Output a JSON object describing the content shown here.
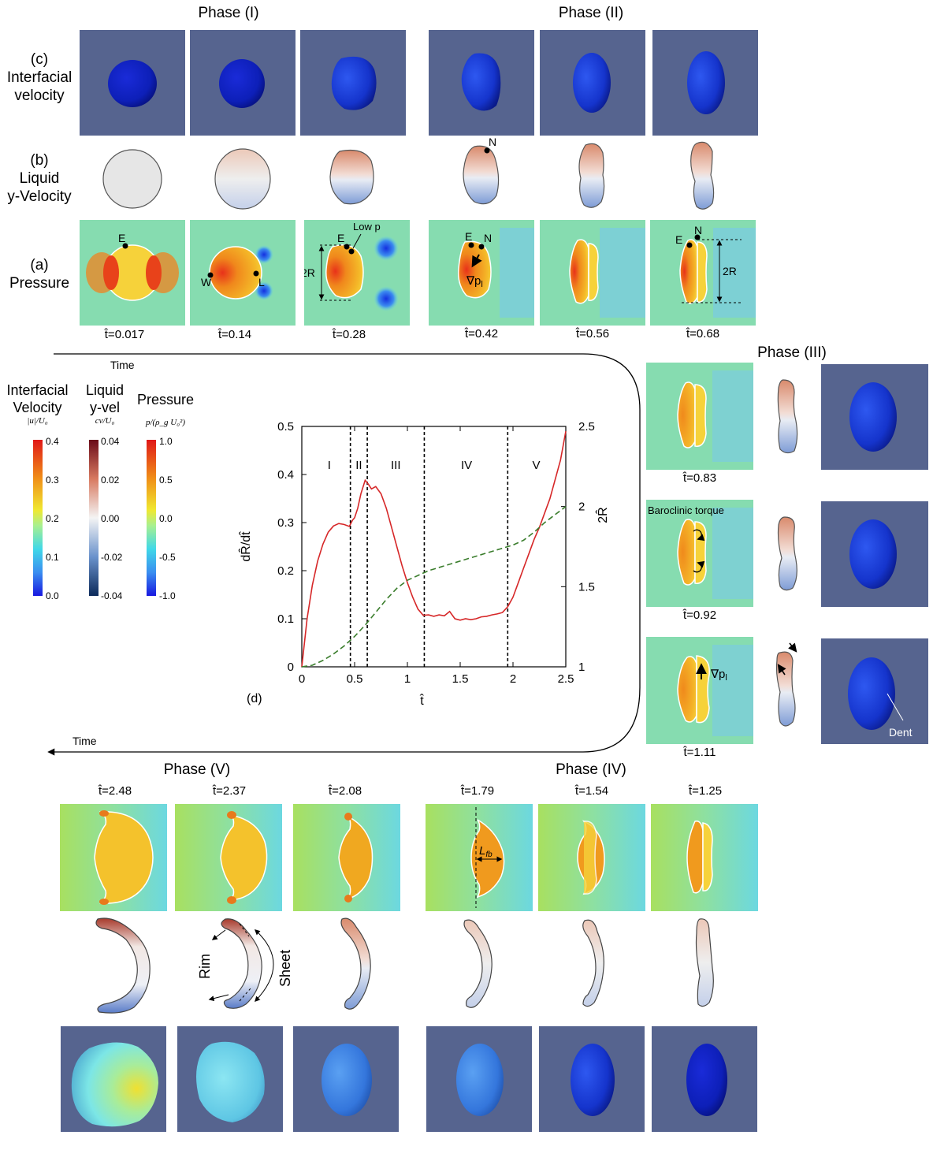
{
  "phases": {
    "p1": "Phase (I)",
    "p2": "Phase (II)",
    "p3": "Phase (III)",
    "p4": "Phase (IV)",
    "p5": "Phase (V)"
  },
  "rows": {
    "c_tag": "(c)",
    "c_name1": "Interfacial",
    "c_name2": "velocity",
    "b_tag": "(b)",
    "b_name1": "Liquid",
    "b_name2": "y-Velocity",
    "a_tag": "(a)",
    "a_name": "Pressure"
  },
  "times_top": [
    "t̂=0.017",
    "t̂=0.14",
    "t̂=0.28",
    "t̂=0.42",
    "t̂=0.56",
    "t̂=0.68"
  ],
  "times_right": [
    "t̂=0.83",
    "t̂=0.92",
    "t̂=1.11"
  ],
  "times_bottom": [
    "t̂=2.48",
    "t̂=2.37",
    "t̂=2.08",
    "t̂=1.79",
    "t̂=1.54",
    "t̂=1.25"
  ],
  "time_arrow_label": "Time",
  "annotations": {
    "E": "E",
    "W": "W",
    "L": "L",
    "N": "N",
    "low_p": "Low p",
    "two_r": "2R",
    "grad_p": "∇p",
    "grad_p_sub": "l",
    "baroclinic": "Baroclinic torque",
    "dent": "Dent",
    "rim": "Rim",
    "sheet": "Sheet",
    "lfb": "L",
    "lfb_sub": "fb"
  },
  "colorbars": [
    {
      "title1": "Interfacial",
      "title2": "Velocity",
      "sub": "|u|/U₀",
      "ticks": [
        "0.4",
        "0.3",
        "0.2",
        "0.1",
        "0.0"
      ]
    },
    {
      "title1": "Liquid",
      "title2": "y-vel",
      "sub": "cv/U₀",
      "ticks": [
        "0.04",
        "0.02",
        "0.00",
        "-0.02",
        "-0.04"
      ]
    },
    {
      "title1": "Pressure",
      "title2": "",
      "sub": "p/(ρ_g U₀²)",
      "ticks": [
        "1.0",
        "0.5",
        "0.0",
        "-0.5",
        "-1.0"
      ]
    }
  ],
  "chart_data": {
    "type": "line",
    "panel_label": "(d)",
    "xlabel": "t̂",
    "ylabel_left": "dR̂/dt̂",
    "ylabel_right": "2R̂",
    "xlim": [
      0,
      2.5
    ],
    "ylim_left": [
      0,
      0.5
    ],
    "ylim_right": [
      1,
      2.5
    ],
    "x_ticks": [
      "0",
      "0.5",
      "1",
      "1.5",
      "2",
      "2.5"
    ],
    "y_ticks_left": [
      "0",
      "0.1",
      "0.2",
      "0.3",
      "0.4",
      "0.5"
    ],
    "y_ticks_right": [
      "1",
      "1.5",
      "2",
      "2.5"
    ],
    "phase_boundaries": [
      0.46,
      0.62,
      1.16,
      1.95
    ],
    "phase_labels": [
      {
        "text": "I",
        "x": 0.26
      },
      {
        "text": "II",
        "x": 0.54
      },
      {
        "text": "III",
        "x": 0.89
      },
      {
        "text": "IV",
        "x": 1.56
      },
      {
        "text": "V",
        "x": 2.22
      }
    ],
    "series": [
      {
        "name": "dR/dt",
        "color": "#d62728",
        "style": "solid",
        "axis": "left",
        "x": [
          0,
          0.05,
          0.1,
          0.15,
          0.2,
          0.25,
          0.3,
          0.35,
          0.4,
          0.45,
          0.48,
          0.5,
          0.53,
          0.56,
          0.6,
          0.63,
          0.66,
          0.7,
          0.75,
          0.8,
          0.85,
          0.9,
          0.95,
          1.0,
          1.05,
          1.1,
          1.15,
          1.2,
          1.25,
          1.3,
          1.35,
          1.4,
          1.45,
          1.5,
          1.55,
          1.6,
          1.65,
          1.7,
          1.75,
          1.8,
          1.85,
          1.9,
          1.95,
          2.0,
          2.05,
          2.1,
          2.15,
          2.2,
          2.25,
          2.3,
          2.35,
          2.4,
          2.45,
          2.5
        ],
        "values": [
          0,
          0.1,
          0.17,
          0.22,
          0.255,
          0.28,
          0.293,
          0.298,
          0.296,
          0.292,
          0.305,
          0.31,
          0.33,
          0.36,
          0.388,
          0.38,
          0.37,
          0.375,
          0.36,
          0.33,
          0.29,
          0.25,
          0.21,
          0.175,
          0.145,
          0.12,
          0.107,
          0.108,
          0.105,
          0.108,
          0.106,
          0.115,
          0.1,
          0.097,
          0.1,
          0.098,
          0.1,
          0.104,
          0.105,
          0.108,
          0.11,
          0.113,
          0.125,
          0.145,
          0.175,
          0.205,
          0.235,
          0.265,
          0.29,
          0.32,
          0.35,
          0.39,
          0.43,
          0.49
        ]
      },
      {
        "name": "2R",
        "color": "#3a7d2c",
        "style": "dashed",
        "axis": "right",
        "x": [
          0,
          0.1,
          0.2,
          0.3,
          0.4,
          0.5,
          0.6,
          0.7,
          0.8,
          0.9,
          1.0,
          1.1,
          1.2,
          1.4,
          1.6,
          1.8,
          2.0,
          2.1,
          2.2,
          2.3,
          2.4,
          2.5
        ],
        "values": [
          1.0,
          1.01,
          1.04,
          1.08,
          1.13,
          1.19,
          1.26,
          1.34,
          1.42,
          1.49,
          1.54,
          1.57,
          1.6,
          1.64,
          1.68,
          1.72,
          1.76,
          1.79,
          1.84,
          1.9,
          1.95,
          2.0
        ]
      }
    ]
  }
}
